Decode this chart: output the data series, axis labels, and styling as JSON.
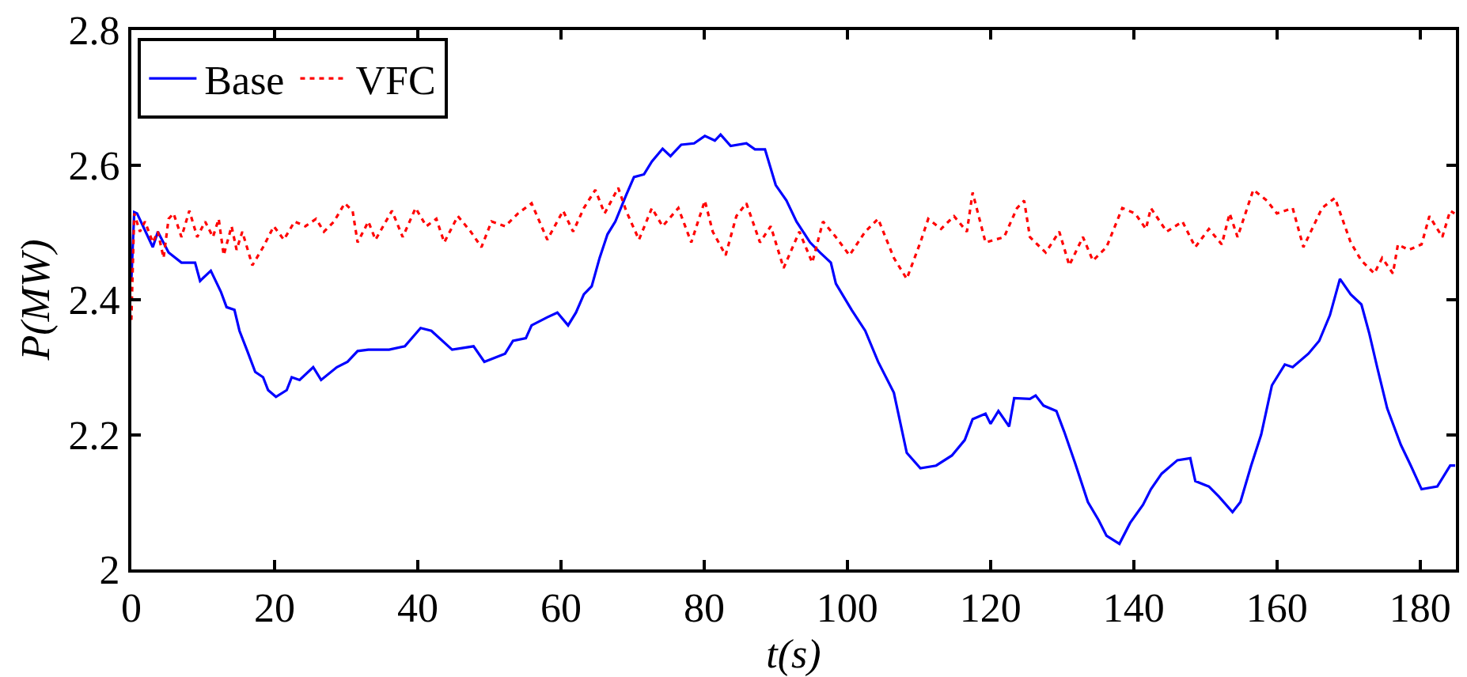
{
  "chart_data": {
    "type": "line",
    "xlabel": "t(s)",
    "ylabel": "P(MW)",
    "xlim": [
      0,
      185
    ],
    "xticks": [
      0,
      20,
      40,
      60,
      80,
      100,
      120,
      140,
      160,
      180
    ],
    "ylim": [
      2,
      2.8
    ],
    "yticks": [
      2,
      2.2,
      2.4,
      2.6,
      2.8
    ],
    "legend": "top left",
    "series": [
      {
        "name": "Base",
        "color": "#0000ff",
        "line_style": "solid",
        "x": [
          0,
          0.4,
          0.8,
          3,
          3.7,
          5.2,
          7,
          8.9,
          9.6,
          11.1,
          12.5,
          13.3,
          14.4,
          15.1,
          16.2,
          17.3,
          18.4,
          19.1,
          20.2,
          21.7,
          22.4,
          23.5,
          25.4,
          26.5,
          28.7,
          30.2,
          31.6,
          33.1,
          36,
          38.2,
          40.4,
          41.9,
          44.8,
          47.8,
          49.3,
          52.2,
          53.3,
          55.1,
          55.9,
          58.1,
          59.5,
          61,
          62.1,
          63.2,
          64.3,
          65.4,
          66.5,
          67.6,
          69.1,
          70.2,
          71.6,
          72.7,
          74.2,
          75.3,
          76.8,
          78.6,
          80.1,
          81.5,
          82.3,
          83.7,
          85.9,
          87.1,
          88.5,
          90,
          91.5,
          92.9,
          94.8,
          96.2,
          97.7,
          98.4,
          100.6,
          102.5,
          104.3,
          106.5,
          108.3,
          110.2,
          112.4,
          114.6,
          116.4,
          117.5,
          119.3,
          120,
          121.1,
          122.6,
          123.3,
          125.5,
          126.3,
          127.4,
          129.2,
          130.3,
          131.8,
          133.6,
          135.1,
          136.2,
          138,
          139.5,
          141.3,
          142.4,
          143.9,
          146.1,
          147.9,
          148.6,
          150.5,
          151.9,
          153.8,
          154.9,
          156.4,
          157.8,
          159.3,
          161.1,
          162.2,
          164.4,
          165.9,
          167.4,
          168.8,
          170.3,
          171.8,
          172.9,
          174,
          175.4,
          177.3,
          178.7,
          180.2,
          182.4,
          184.2,
          184.9
        ],
        "values": [
          2.43,
          2.53,
          2.528,
          2.478,
          2.501,
          2.47,
          2.455,
          2.455,
          2.428,
          2.443,
          2.412,
          2.389,
          2.385,
          2.354,
          2.324,
          2.293,
          2.285,
          2.266,
          2.256,
          2.266,
          2.285,
          2.281,
          2.3,
          2.281,
          2.3,
          2.308,
          2.324,
          2.326,
          2.326,
          2.331,
          2.358,
          2.354,
          2.326,
          2.331,
          2.308,
          2.32,
          2.339,
          2.343,
          2.362,
          2.374,
          2.381,
          2.362,
          2.381,
          2.408,
          2.42,
          2.462,
          2.497,
          2.516,
          2.555,
          2.582,
          2.586,
          2.605,
          2.624,
          2.613,
          2.63,
          2.632,
          2.643,
          2.636,
          2.645,
          2.628,
          2.632,
          2.623,
          2.623,
          2.57,
          2.547,
          2.516,
          2.485,
          2.47,
          2.455,
          2.424,
          2.385,
          2.354,
          2.308,
          2.262,
          2.173,
          2.15,
          2.154,
          2.169,
          2.192,
          2.223,
          2.231,
          2.216,
          2.235,
          2.212,
          2.254,
          2.253,
          2.258,
          2.243,
          2.235,
          2.204,
          2.158,
          2.1,
          2.073,
          2.05,
          2.038,
          2.069,
          2.096,
          2.119,
          2.142,
          2.162,
          2.165,
          2.131,
          2.123,
          2.108,
          2.085,
          2.1,
          2.154,
          2.2,
          2.273,
          2.304,
          2.3,
          2.32,
          2.339,
          2.377,
          2.431,
          2.408,
          2.393,
          2.35,
          2.3,
          2.239,
          2.185,
          2.154,
          2.119,
          2.123,
          2.154,
          2.154
        ]
      },
      {
        "name": "VFC",
        "color": "#ff0000",
        "line_style": "dotted",
        "x": [
          0,
          0.4,
          1.2,
          1.9,
          3,
          3.7,
          4.5,
          5.2,
          5.9,
          7,
          8.1,
          9.2,
          10.3,
          11.4,
          12.2,
          12.9,
          14,
          14.7,
          15.5,
          16.9,
          18.4,
          19.9,
          21.3,
          22.8,
          24.3,
          25.8,
          26.9,
          28.3,
          29.8,
          30.9,
          31.6,
          33.1,
          34.1,
          36.4,
          37.9,
          39.7,
          41.2,
          42.6,
          43.7,
          45.6,
          47.4,
          48.9,
          50.3,
          52.2,
          54,
          55.9,
          58.1,
          60.3,
          61.7,
          63.2,
          64.8,
          66.1,
          68,
          69.1,
          70.9,
          72.7,
          74.2,
          76.4,
          78.2,
          80.1,
          81.2,
          83,
          84.5,
          85.9,
          87.8,
          89.3,
          91.1,
          93.3,
          95.1,
          96.6,
          98.4,
          100.3,
          102.5,
          104.3,
          106.5,
          108.3,
          110.2,
          111.3,
          113.1,
          114.9,
          116.7,
          117.5,
          119.3,
          121.9,
          123.7,
          124.7,
          125.5,
          127.7,
          129.6,
          131,
          132.9,
          134.3,
          136.2,
          138.4,
          140.2,
          141.7,
          142.4,
          144.6,
          146.8,
          148.6,
          150.5,
          152.3,
          153.4,
          154.5,
          156.7,
          158.6,
          160,
          162.2,
          163.7,
          166.3,
          168.1,
          170.3,
          171.8,
          173.6,
          174.7,
          176.2,
          176.9,
          178.4,
          180.2,
          181.3,
          183.1,
          184.2,
          184.8
        ],
        "values": [
          2.37,
          2.528,
          2.501,
          2.516,
          2.485,
          2.501,
          2.462,
          2.52,
          2.528,
          2.493,
          2.532,
          2.493,
          2.516,
          2.493,
          2.52,
          2.466,
          2.509,
          2.474,
          2.501,
          2.451,
          2.478,
          2.509,
          2.489,
          2.516,
          2.509,
          2.52,
          2.501,
          2.516,
          2.543,
          2.532,
          2.485,
          2.516,
          2.489,
          2.532,
          2.493,
          2.536,
          2.509,
          2.52,
          2.485,
          2.524,
          2.501,
          2.478,
          2.516,
          2.509,
          2.528,
          2.543,
          2.489,
          2.532,
          2.501,
          2.536,
          2.563,
          2.528,
          2.566,
          2.532,
          2.489,
          2.536,
          2.509,
          2.536,
          2.485,
          2.547,
          2.501,
          2.466,
          2.524,
          2.543,
          2.485,
          2.509,
          2.447,
          2.501,
          2.455,
          2.516,
          2.493,
          2.466,
          2.501,
          2.52,
          2.462,
          2.431,
          2.485,
          2.52,
          2.505,
          2.524,
          2.501,
          2.559,
          2.485,
          2.493,
          2.536,
          2.547,
          2.493,
          2.47,
          2.501,
          2.451,
          2.493,
          2.458,
          2.478,
          2.536,
          2.528,
          2.505,
          2.536,
          2.501,
          2.516,
          2.478,
          2.505,
          2.482,
          2.528,
          2.493,
          2.563,
          2.547,
          2.528,
          2.536,
          2.478,
          2.536,
          2.551,
          2.485,
          2.458,
          2.439,
          2.462,
          2.439,
          2.482,
          2.474,
          2.482,
          2.524,
          2.493,
          2.532,
          2.528
        ]
      }
    ]
  }
}
